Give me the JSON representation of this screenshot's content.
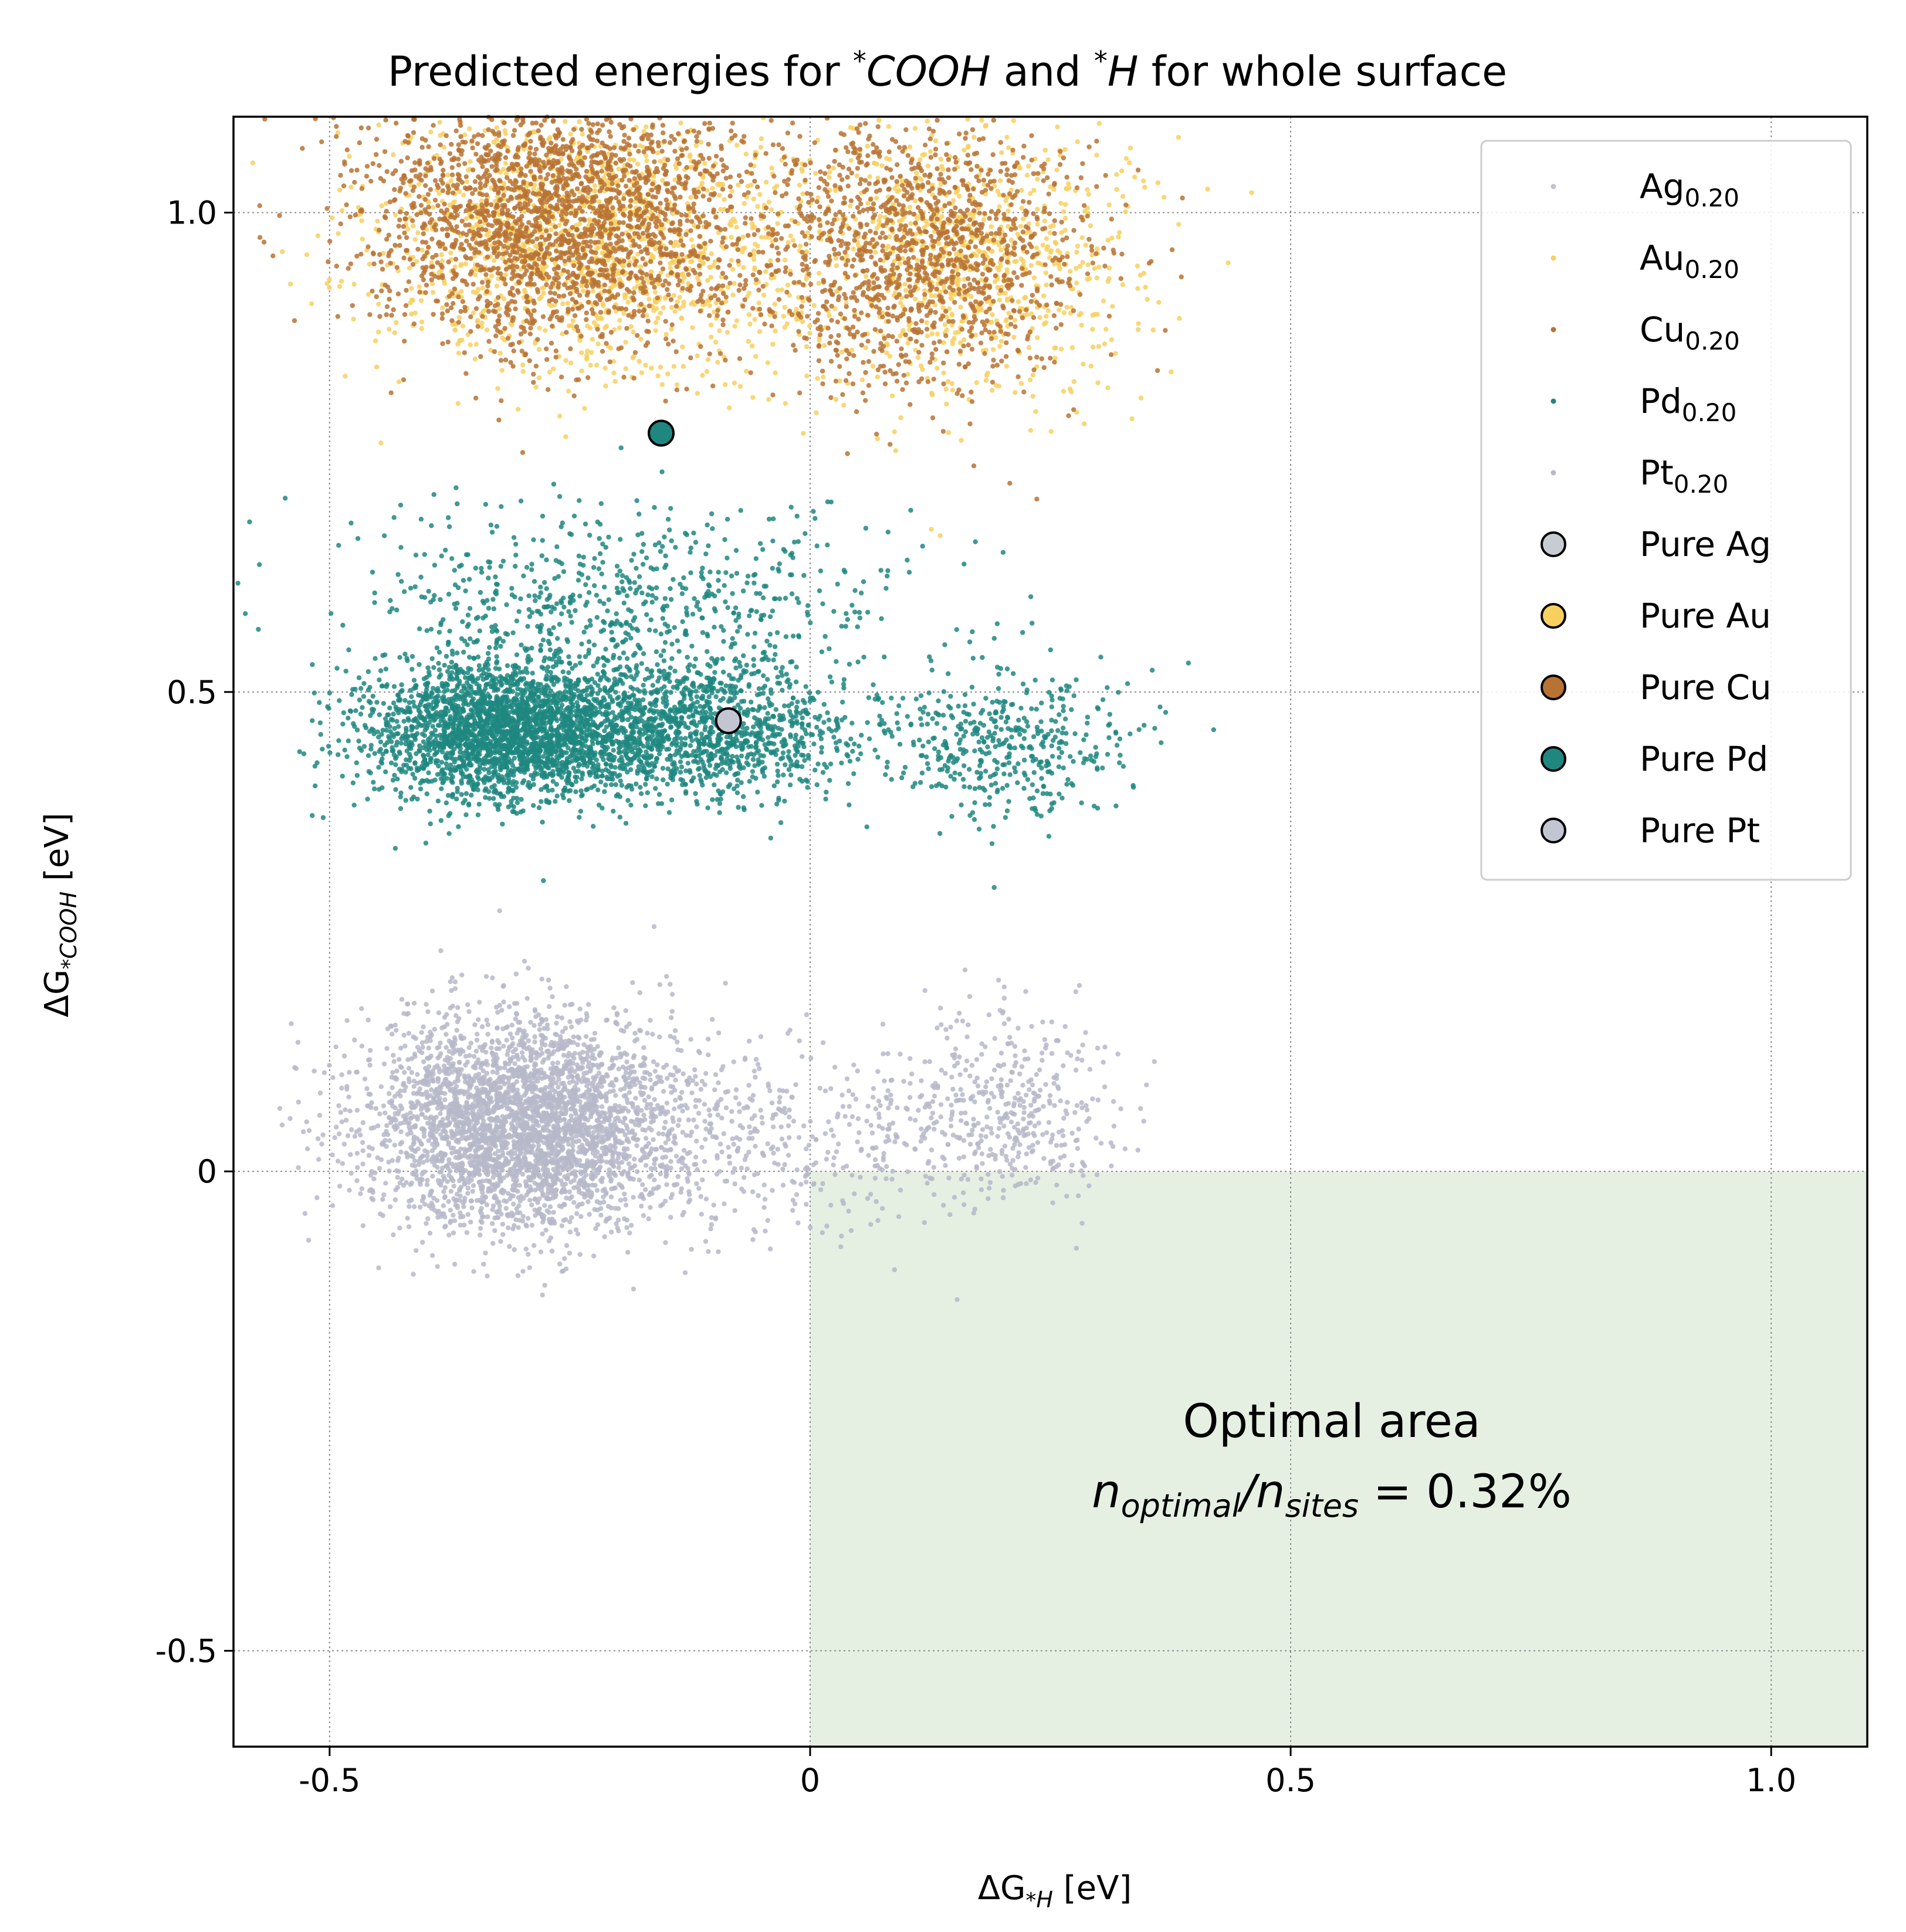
{
  "chart_data": {
    "type": "scatter",
    "title": {
      "pre": "Predicted energies for ",
      "sup1": "*",
      "term1": "COOH",
      "mid": " and ",
      "sup2": "*",
      "term2": "H",
      "post": " for whole surface"
    },
    "xlabel": {
      "delta": "ΔG",
      "sub_star": "*",
      "sub": "H",
      "unit": " [eV]"
    },
    "ylabel": {
      "delta": "ΔG",
      "sub_star": "*",
      "sub": "COOH",
      "unit": " [eV]"
    },
    "xlim": [
      -0.6,
      1.1
    ],
    "ylim": [
      -0.6,
      1.1
    ],
    "x_ticks": [
      {
        "value": -0.5,
        "label": "-0.5"
      },
      {
        "value": 0,
        "label": "0"
      },
      {
        "value": 0.5,
        "label": "0.5"
      },
      {
        "value": 1.0,
        "label": "1.0"
      }
    ],
    "y_ticks": [
      {
        "value": -0.5,
        "label": "-0.5"
      },
      {
        "value": 0,
        "label": "0"
      },
      {
        "value": 0.5,
        "label": "0.5"
      },
      {
        "value": 1.0,
        "label": "1.0"
      }
    ],
    "grid": "dotted",
    "legend_position": "upper right",
    "optimal_region": {
      "x": [
        0,
        1.1
      ],
      "y": [
        -0.6,
        0
      ],
      "color": "#e5f0e3",
      "label": "Optimal area",
      "ratio_num": "n",
      "ratio_num_sub": "optimal",
      "ratio_den": "n",
      "ratio_den_sub": "sites",
      "ratio_value": " = 0.32%"
    },
    "series": [
      {
        "name": "Ag",
        "sub": "0.20",
        "color": "#c0c4cc",
        "kind": "sites",
        "clusters": []
      },
      {
        "name": "Au",
        "sub": "0.20",
        "color": "#f8d05f",
        "kind": "sites",
        "clusters": [
          {
            "cx": -0.23,
            "cy": 0.97,
            "sx": 0.11,
            "sy": 0.07,
            "n": 1400
          },
          {
            "cx": 0.16,
            "cy": 0.95,
            "sx": 0.09,
            "sy": 0.07,
            "n": 900
          }
        ]
      },
      {
        "name": "Cu",
        "sub": "0.20",
        "color": "#b87333",
        "kind": "sites",
        "clusters": [
          {
            "cx": -0.26,
            "cy": 1.0,
            "sx": 0.1,
            "sy": 0.07,
            "n": 2300
          },
          {
            "cx": 0.11,
            "cy": 0.96,
            "sx": 0.09,
            "sy": 0.07,
            "n": 1300
          }
        ]
      },
      {
        "name": "Pd",
        "sub": "0.20",
        "color": "#1f8780",
        "kind": "sites",
        "clusters": [
          {
            "cx": -0.32,
            "cy": 0.46,
            "sx": 0.07,
            "sy": 0.035,
            "n": 2600
          },
          {
            "cx": -0.12,
            "cy": 0.46,
            "sx": 0.08,
            "sy": 0.035,
            "n": 1300
          },
          {
            "cx": -0.2,
            "cy": 0.6,
            "sx": 0.14,
            "sy": 0.05,
            "n": 650
          },
          {
            "cx": 0.2,
            "cy": 0.45,
            "sx": 0.07,
            "sy": 0.04,
            "n": 450
          }
        ]
      },
      {
        "name": "Pt",
        "sub": "0.20",
        "color": "#b6b9c9",
        "kind": "sites",
        "clusters": [
          {
            "cx": -0.3,
            "cy": 0.05,
            "sx": 0.08,
            "sy": 0.055,
            "n": 3400
          },
          {
            "cx": -0.05,
            "cy": 0.03,
            "sx": 0.1,
            "sy": 0.05,
            "n": 450
          },
          {
            "cx": 0.2,
            "cy": 0.06,
            "sx": 0.06,
            "sy": 0.05,
            "n": 450
          }
        ]
      },
      {
        "name": "Pure Ag",
        "color": "#c8ccd2",
        "kind": "pure",
        "points": []
      },
      {
        "name": "Pure Au",
        "color": "#f8d05f",
        "kind": "pure",
        "points": []
      },
      {
        "name": "Pure Cu",
        "color": "#b87333",
        "kind": "pure",
        "points": []
      },
      {
        "name": "Pure Pd",
        "color": "#1f8780",
        "kind": "pure",
        "points": [
          {
            "x": -0.155,
            "y": 0.77
          }
        ]
      },
      {
        "name": "Pure Pt",
        "color": "#c3c5d3",
        "kind": "pure",
        "points": [
          {
            "x": -0.085,
            "y": 0.47
          }
        ]
      }
    ]
  }
}
